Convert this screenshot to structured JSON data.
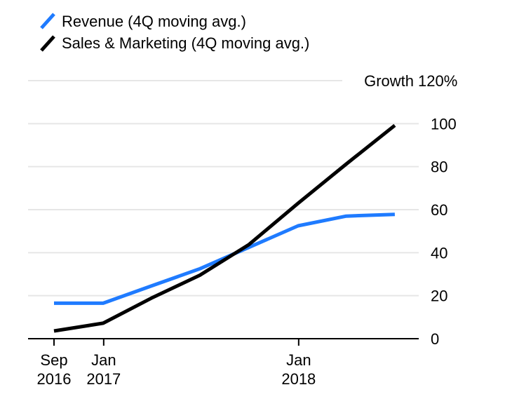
{
  "chart_data": {
    "type": "line",
    "legend": [
      {
        "label": "Revenue (4Q moving avg.)",
        "color": "#1f7bff"
      },
      {
        "label": "Sales & Marketing (4Q moving avg.)",
        "color": "#000000"
      }
    ],
    "y_axis": {
      "label": "Growth",
      "top_tick": "120%",
      "ticks": [
        "0",
        "20",
        "40",
        "60",
        "80",
        "100"
      ],
      "tick_values": [
        0,
        20,
        40,
        60,
        80,
        100,
        120
      ],
      "ylim": [
        0,
        120
      ],
      "position": "right"
    },
    "x_axis": {
      "ticks": [
        {
          "date": "2016-09-30",
          "line1": "Sep",
          "line2": "2016"
        },
        {
          "date": "2017-01-01",
          "line1": "Jan",
          "line2": "2017"
        },
        {
          "date": "2018-01-01",
          "line1": "Jan",
          "line2": "2018"
        }
      ]
    },
    "grid": true,
    "series": [
      {
        "name": "Revenue (4Q moving avg.)",
        "color": "#1f7bff",
        "points": [
          {
            "x": "2016-09-30",
            "y": 16.5
          },
          {
            "x": "2016-12-31",
            "y": 16.5
          },
          {
            "x": "2017-03-31",
            "y": 24.5
          },
          {
            "x": "2017-06-30",
            "y": 32.5
          },
          {
            "x": "2017-09-30",
            "y": 42.5
          },
          {
            "x": "2017-12-31",
            "y": 52.5
          },
          {
            "x": "2018-03-31",
            "y": 57
          },
          {
            "x": "2018-06-30",
            "y": 57.8
          }
        ]
      },
      {
        "name": "Sales & Marketing (4Q moving avg.)",
        "color": "#000000",
        "points": [
          {
            "x": "2016-09-30",
            "y": 3.6
          },
          {
            "x": "2016-12-31",
            "y": 7.2
          },
          {
            "x": "2017-03-31",
            "y": 18.8
          },
          {
            "x": "2017-06-30",
            "y": 29.5
          },
          {
            "x": "2017-09-30",
            "y": 43.8
          },
          {
            "x": "2017-12-31",
            "y": 63
          },
          {
            "x": "2018-03-31",
            "y": 81.2
          },
          {
            "x": "2018-06-30",
            "y": 99.2
          }
        ]
      }
    ]
  }
}
